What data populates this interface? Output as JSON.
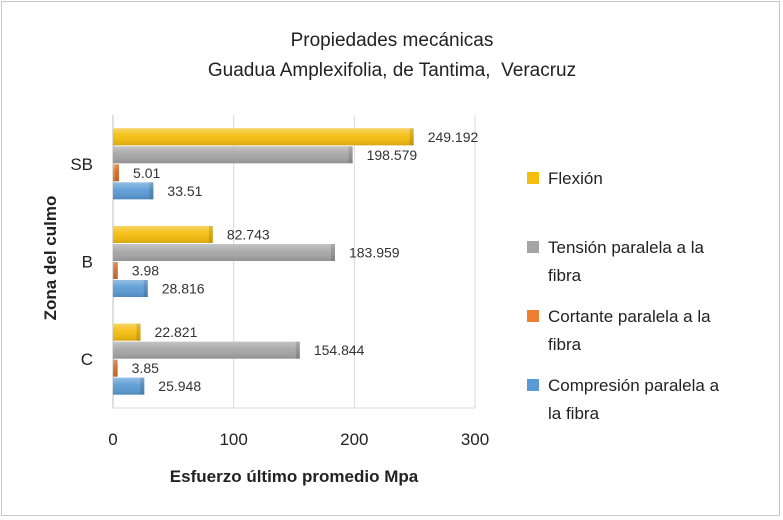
{
  "chart_data": {
    "type": "bar",
    "orientation": "horizontal",
    "title": "Propiedades mecánicas",
    "subtitle": "Guadua Amplexifolia, de Tantima,  Veracruz",
    "xlabel": "Esfuerzo último promedio Mpa",
    "ylabel": "Zona del culmo",
    "xlim": [
      0,
      300
    ],
    "xticks": [
      "0",
      "100",
      "200",
      "300"
    ],
    "categories": [
      "SB",
      "B",
      "C"
    ],
    "series": [
      {
        "name": "Flexión",
        "color": "#f5bd0e",
        "values": [
          249.192,
          82.743,
          22.821
        ],
        "labels": [
          "249.192",
          "82.743",
          "22.821"
        ]
      },
      {
        "name": "Tensión paralela a la fibra",
        "color": "#a5a5a5",
        "values": [
          198.579,
          183.959,
          154.844
        ],
        "labels": [
          "198.579",
          "183.959",
          "154.844"
        ]
      },
      {
        "name": "Cortante paralela a la fibra",
        "color": "#ed7d31",
        "values": [
          5.01,
          3.98,
          3.85
        ],
        "labels": [
          "5.01",
          "3.98",
          "3.85"
        ]
      },
      {
        "name": "Compresión paralela a la fibra",
        "color": "#5b9bd5",
        "values": [
          33.51,
          28.816,
          25.948
        ],
        "labels": [
          "33.51",
          "28.816",
          "25.948"
        ]
      }
    ],
    "legend": {
      "position": "right",
      "entries": [
        {
          "lines": [
            "Flexión"
          ]
        },
        {
          "lines": [
            "Tensión paralela a la",
            "fibra"
          ]
        },
        {
          "lines": [
            "Cortante paralela a la",
            "fibra"
          ]
        },
        {
          "lines": [
            "Compresión paralela a",
            "la fibra"
          ]
        }
      ]
    },
    "grid": true
  }
}
